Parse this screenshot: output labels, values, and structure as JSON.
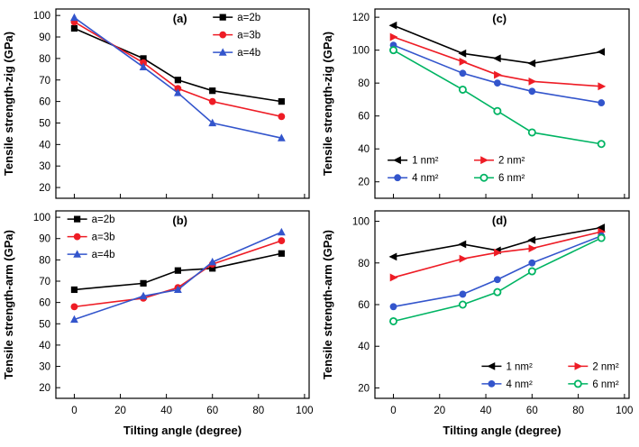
{
  "figure": {
    "background": "#ffffff",
    "x_axis_title": "Tilting angle (degree)"
  },
  "colors": {
    "black": "#000000",
    "red": "#ee1c25",
    "blue": "#3355cc",
    "green": "#00b463"
  },
  "chart_data": [
    {
      "type": "line",
      "panel_label": "(a)",
      "ylabel": "Tensile strength-zig (GPa)",
      "xlabel": "",
      "show_x_tick_labels": false,
      "x": [
        0,
        30,
        45,
        60,
        90
      ],
      "xlim": [
        -8,
        102
      ],
      "ylim": [
        15,
        103
      ],
      "xticks": [
        0,
        20,
        40,
        60,
        80,
        100
      ],
      "yticks": [
        20,
        30,
        40,
        50,
        60,
        70,
        80,
        90,
        100
      ],
      "legend": {
        "position": "top-right",
        "columns": 1
      },
      "series": [
        {
          "name": "a=2b",
          "color": "#000000",
          "marker": "square",
          "values": [
            94,
            80,
            70,
            65,
            60
          ]
        },
        {
          "name": "a=3b",
          "color": "#ee1c25",
          "marker": "circle",
          "values": [
            97,
            78,
            66,
            60,
            53
          ]
        },
        {
          "name": "a=4b",
          "color": "#3355cc",
          "marker": "triangle-up",
          "values": [
            99,
            76,
            64,
            50,
            43
          ]
        }
      ]
    },
    {
      "type": "line",
      "panel_label": "(b)",
      "ylabel": "Tensile strength-arm (GPa)",
      "xlabel": "Tilting angle (degree)",
      "show_x_tick_labels": true,
      "x": [
        0,
        30,
        45,
        60,
        90
      ],
      "xlim": [
        -8,
        102
      ],
      "ylim": [
        15,
        103
      ],
      "xticks": [
        0,
        20,
        40,
        60,
        80,
        100
      ],
      "yticks": [
        20,
        30,
        40,
        50,
        60,
        70,
        80,
        90,
        100
      ],
      "legend": {
        "position": "top-left",
        "columns": 1
      },
      "series": [
        {
          "name": "a=2b",
          "color": "#000000",
          "marker": "square",
          "values": [
            66,
            69,
            75,
            76,
            83
          ]
        },
        {
          "name": "a=3b",
          "color": "#ee1c25",
          "marker": "circle",
          "values": [
            58,
            62,
            67,
            78,
            89
          ]
        },
        {
          "name": "a=4b",
          "color": "#3355cc",
          "marker": "triangle-up",
          "values": [
            52,
            63,
            66,
            79,
            93
          ]
        }
      ]
    },
    {
      "type": "line",
      "panel_label": "(c)",
      "ylabel": "Tensile strength-zig (GPa)",
      "xlabel": "",
      "show_x_tick_labels": false,
      "x": [
        0,
        30,
        45,
        60,
        90
      ],
      "xlim": [
        -8,
        102
      ],
      "ylim": [
        10,
        125
      ],
      "xticks": [
        0,
        20,
        40,
        60,
        80,
        100
      ],
      "yticks": [
        20,
        40,
        60,
        80,
        100,
        120
      ],
      "legend": {
        "position": "bottom-left",
        "columns": 2
      },
      "series": [
        {
          "name": "1 nm²",
          "color": "#000000",
          "marker": "triangle-left",
          "values": [
            115,
            98,
            95,
            92,
            99
          ]
        },
        {
          "name": "2 nm²",
          "color": "#ee1c25",
          "marker": "triangle-right",
          "values": [
            108,
            93,
            85,
            81,
            78
          ]
        },
        {
          "name": "4 nm²",
          "color": "#3355cc",
          "marker": "circle",
          "values": [
            103,
            86,
            80,
            75,
            68
          ]
        },
        {
          "name": "6 nm²",
          "color": "#00b463",
          "marker": "circle-open",
          "values": [
            100,
            76,
            63,
            50,
            43
          ]
        }
      ]
    },
    {
      "type": "line",
      "panel_label": "(d)",
      "ylabel": "Tensile strength-arm (GPa)",
      "xlabel": "Tilting angle (degree)",
      "show_x_tick_labels": true,
      "x": [
        0,
        30,
        45,
        60,
        90
      ],
      "xlim": [
        -8,
        102
      ],
      "ylim": [
        15,
        105
      ],
      "xticks": [
        0,
        20,
        40,
        60,
        80,
        100
      ],
      "yticks": [
        20,
        40,
        60,
        80,
        100
      ],
      "legend": {
        "position": "bottom-right",
        "columns": 2
      },
      "series": [
        {
          "name": "1 nm²",
          "color": "#000000",
          "marker": "triangle-left",
          "values": [
            83,
            89,
            86,
            91,
            97
          ]
        },
        {
          "name": "2 nm²",
          "color": "#ee1c25",
          "marker": "triangle-right",
          "values": [
            73,
            82,
            85,
            87,
            95
          ]
        },
        {
          "name": "4 nm²",
          "color": "#3355cc",
          "marker": "circle",
          "values": [
            59,
            65,
            72,
            80,
            93
          ]
        },
        {
          "name": "6 nm²",
          "color": "#00b463",
          "marker": "circle-open",
          "values": [
            52,
            60,
            66,
            76,
            92
          ]
        }
      ]
    }
  ]
}
